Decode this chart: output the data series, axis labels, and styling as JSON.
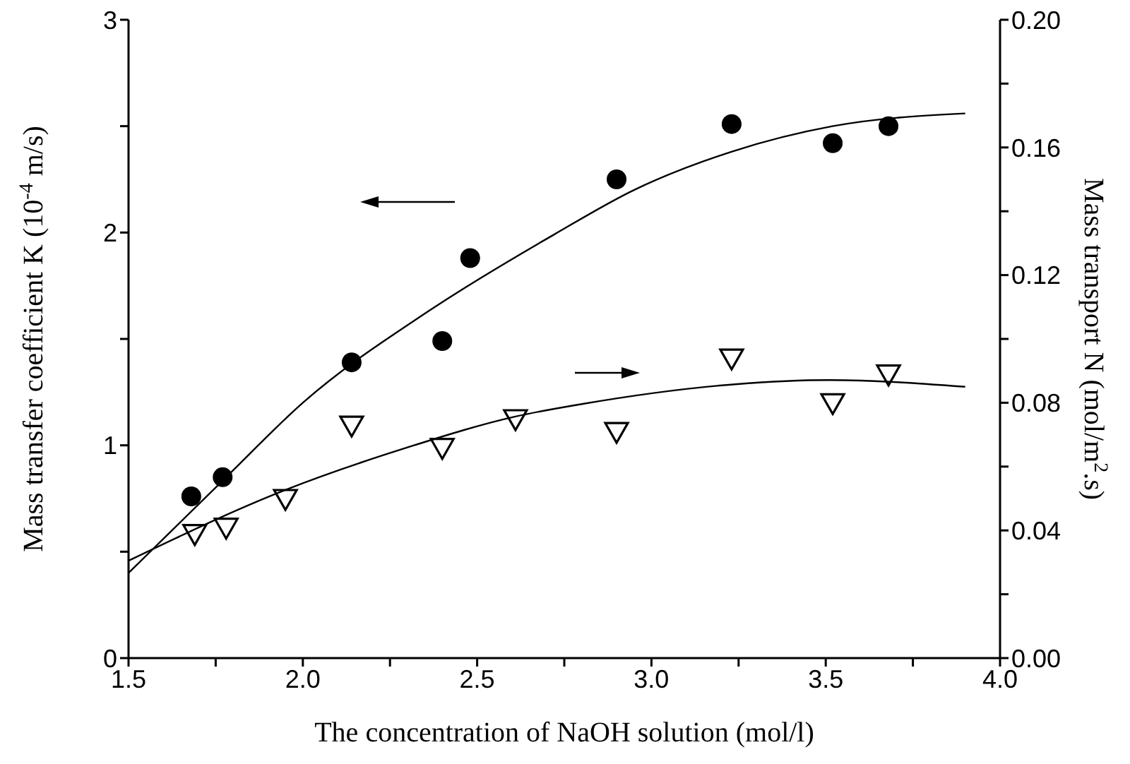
{
  "chart_data": {
    "type": "scatter",
    "xlabel": "The concentration of NaOH solution (mol/l)",
    "ylabel": "Mass transfer coefficient K (10$^{-4}$ m/s)",
    "y2label": "Mass transport N (mol/m$^{2}$.s)",
    "xlim": [
      1.5,
      4.0
    ],
    "xticks": [
      {
        "value": 1.5,
        "label": "1.5"
      },
      {
        "value": 1.75,
        "label": null
      },
      {
        "value": 2.0,
        "label": "2.0"
      },
      {
        "value": 2.25,
        "label": null
      },
      {
        "value": 2.5,
        "label": "2.5"
      },
      {
        "value": 2.75,
        "label": null
      },
      {
        "value": 3.0,
        "label": "3.0"
      },
      {
        "value": 3.25,
        "label": null
      },
      {
        "value": 3.5,
        "label": "3.5"
      },
      {
        "value": 3.75,
        "label": null
      },
      {
        "value": 4.0,
        "label": "4.0"
      }
    ],
    "ylim": [
      0,
      3
    ],
    "yticks": [
      0,
      {
        "value": 0.5,
        "label": null
      },
      1,
      {
        "value": 1.5,
        "label": null
      },
      2,
      {
        "value": 2.5,
        "label": null
      },
      3
    ],
    "y2lim": [
      0,
      0.2
    ],
    "y2ticks": [
      {
        "value": 0,
        "label": "0.00"
      },
      {
        "value": 0.02,
        "label": null
      },
      {
        "value": 0.04,
        "label": "0.04"
      },
      {
        "value": 0.06,
        "label": null
      },
      {
        "value": 0.08,
        "label": "0.08"
      },
      {
        "value": 0.1,
        "label": null
      },
      {
        "value": 0.12,
        "label": "0.12"
      },
      {
        "value": 0.14,
        "label": null
      },
      {
        "value": 0.16,
        "label": "0.16"
      },
      {
        "value": 0.18,
        "label": null
      },
      {
        "value": 0.2,
        "label": "0.20"
      }
    ],
    "series": [
      {
        "type": "scatter",
        "color": "#000000",
        "marker": "circle",
        "x": [
          1.68,
          1.77,
          2.14,
          2.4,
          2.48,
          2.9,
          3.23,
          3.52,
          3.68
        ],
        "values": [
          0.76,
          0.85,
          1.39,
          1.49,
          1.88,
          2.25,
          2.51,
          2.42,
          2.5
        ]
      },
      {
        "type": "scatter",
        "color": "#000000",
        "marker": "triangle",
        "axis": "y2",
        "x": [
          1.69,
          1.78,
          1.95,
          2.14,
          2.4,
          2.61,
          2.9,
          3.23,
          3.52,
          3.68
        ],
        "values": [
          0.039,
          0.041,
          0.05,
          0.073,
          0.066,
          0.075,
          0.071,
          0.094,
          0.08,
          0.089
        ]
      },
      {
        "type": "line",
        "color": "#000000",
        "marker": "none",
        "x": [
          1.5,
          1.78,
          2.0,
          2.36,
          2.72,
          2.95,
          3.23,
          3.52,
          3.9
        ],
        "values": [
          0.4,
          0.85,
          1.2,
          1.63,
          1.99,
          2.2,
          2.38,
          2.5,
          2.56
        ]
      },
      {
        "type": "line",
        "color": "#000000",
        "marker": "none",
        "axis": "y2",
        "x": [
          1.5,
          1.95,
          2.3,
          2.61,
          2.8,
          3.24,
          3.51,
          3.9
        ],
        "values": [
          0.0305,
          0.0527,
          0.066,
          0.0757,
          0.0796,
          0.0858,
          0.0871,
          0.085
        ]
      }
    ]
  }
}
